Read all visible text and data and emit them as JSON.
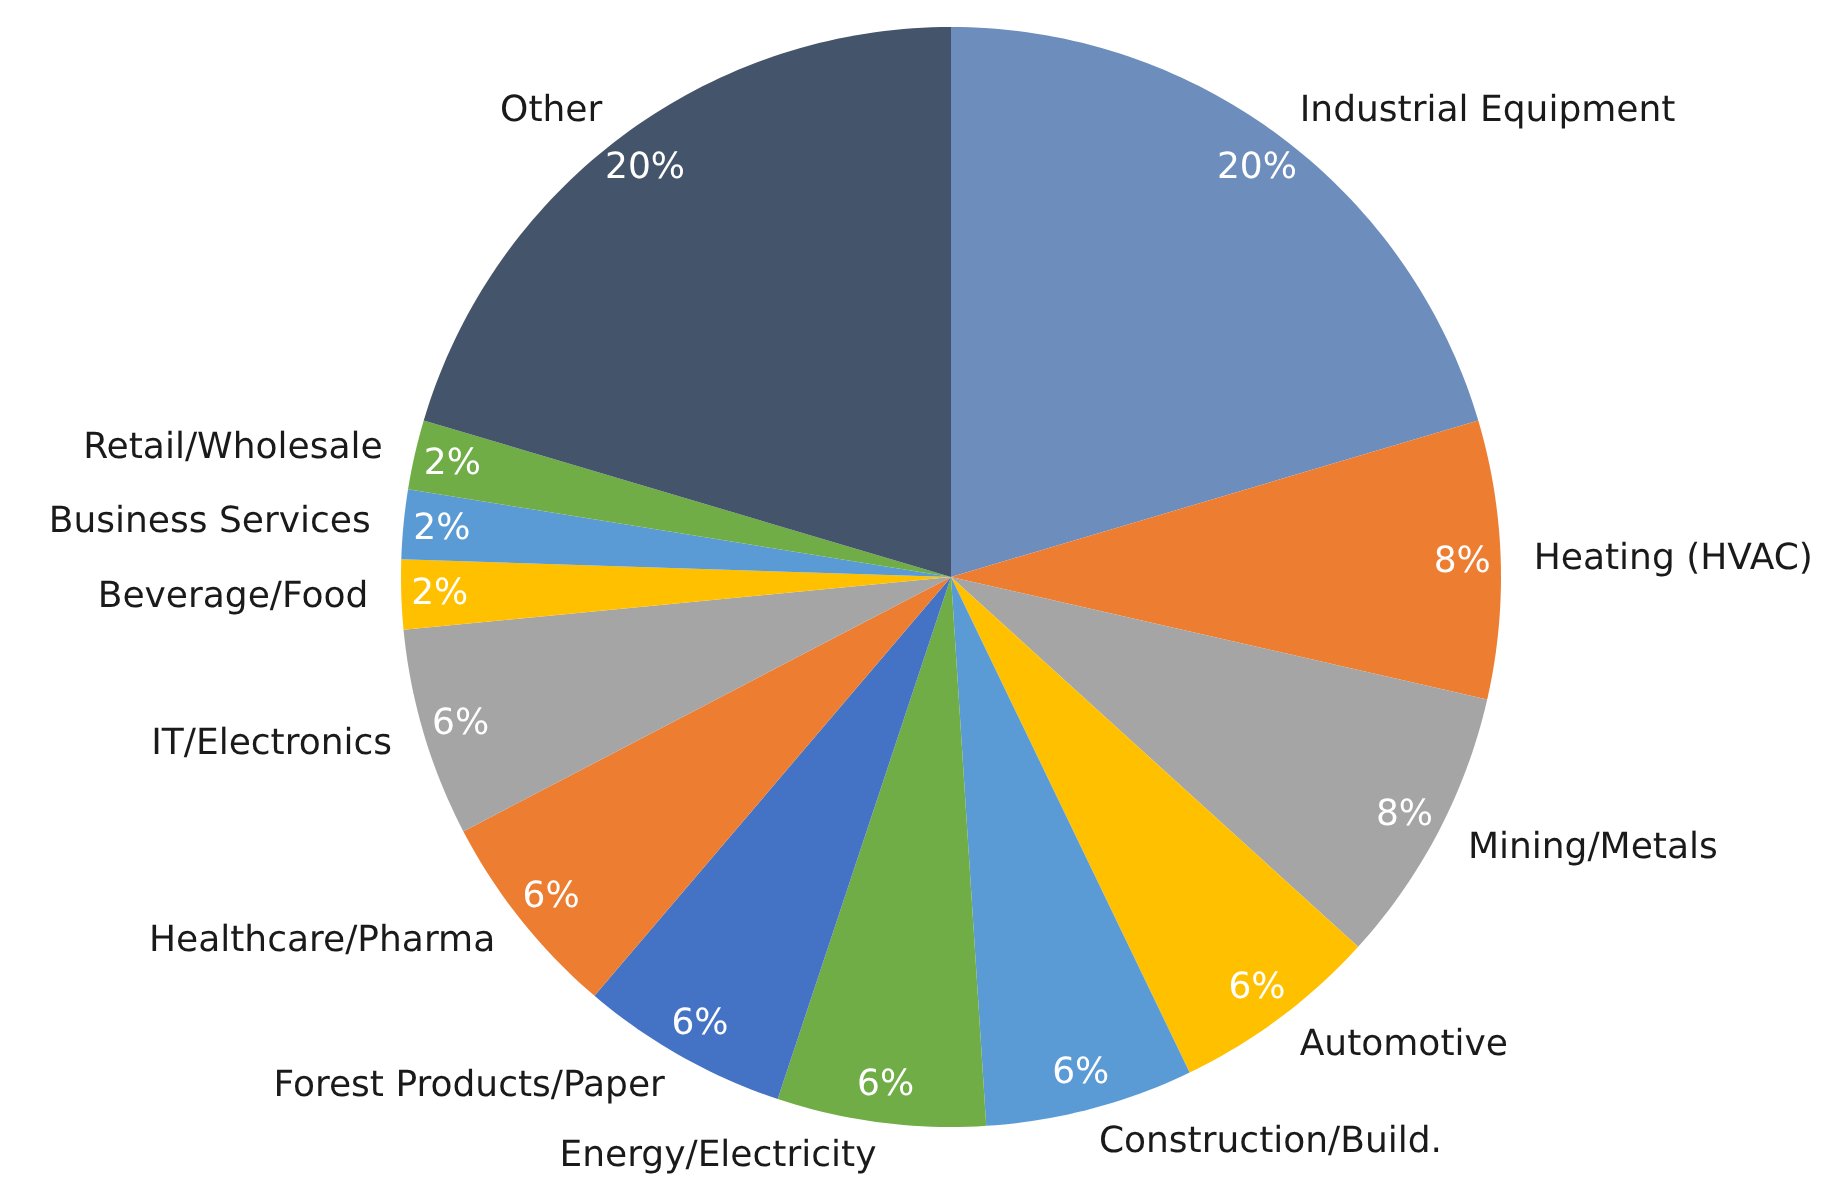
{
  "chart_data": {
    "type": "pie",
    "categories": [
      "Industrial Equipment",
      "Heating (HVAC)",
      "Mining/Metals",
      "Automotive",
      "Construction/Build.",
      "Energy/Electricity",
      "Forest Products/Paper",
      "Healthcare/Pharma",
      "IT/Electronics",
      "Beverage/Food",
      "Business Services",
      "Retail/Wholesale",
      "Other"
    ],
    "values": [
      20,
      8,
      8,
      6,
      6,
      6,
      6,
      6,
      6,
      2,
      2,
      2,
      20
    ],
    "colors": [
      "#6d8ebc",
      "#ed7d31",
      "#a5a5a5",
      "#ffc000",
      "#5b9bd5",
      "#70ad47",
      "#4472c4",
      "#ed7d31",
      "#a5a5a5",
      "#ffc000",
      "#5b9bd5",
      "#70ad47",
      "#44546a"
    ],
    "value_labels": [
      "20%",
      "8%",
      "8%",
      "6%",
      "6%",
      "6%",
      "6%",
      "6%",
      "6%",
      "2%",
      "2%",
      "2%",
      "20%"
    ]
  }
}
